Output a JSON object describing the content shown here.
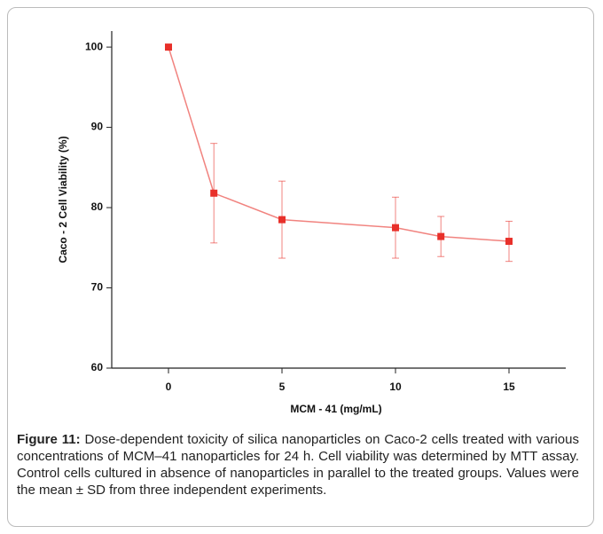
{
  "chart_data": {
    "type": "line",
    "x_label": "MCM - 41 (mg/mL)",
    "y_label": "Caco - 2 Cell Viability (%)",
    "x": [
      0,
      2,
      5,
      10,
      12,
      15
    ],
    "series": [
      {
        "color": "#e8302a",
        "values": [
          100,
          81.8,
          78.5,
          77.5,
          76.4,
          75.8
        ],
        "errors": [
          0,
          6.2,
          4.8,
          3.8,
          2.5,
          2.5
        ]
      }
    ],
    "xlim": [
      -2.5,
      17.5
    ],
    "xticks": [
      0,
      5,
      10,
      15
    ],
    "ylim": [
      60,
      102
    ],
    "yticks": [
      60,
      70,
      80,
      90,
      100
    ],
    "caption_label": "Figure 11:",
    "caption": "Dose-dependent toxicity of silica nanoparticles on Caco-2 cells treated with various concentrations of MCM–41 nanoparticles for 24 h. Cell viability was determined by MTT assay. Control cells cultured in absence of nanoparticles in parallel to the treated groups. Values were the mean ± SD from three independent experiments."
  }
}
